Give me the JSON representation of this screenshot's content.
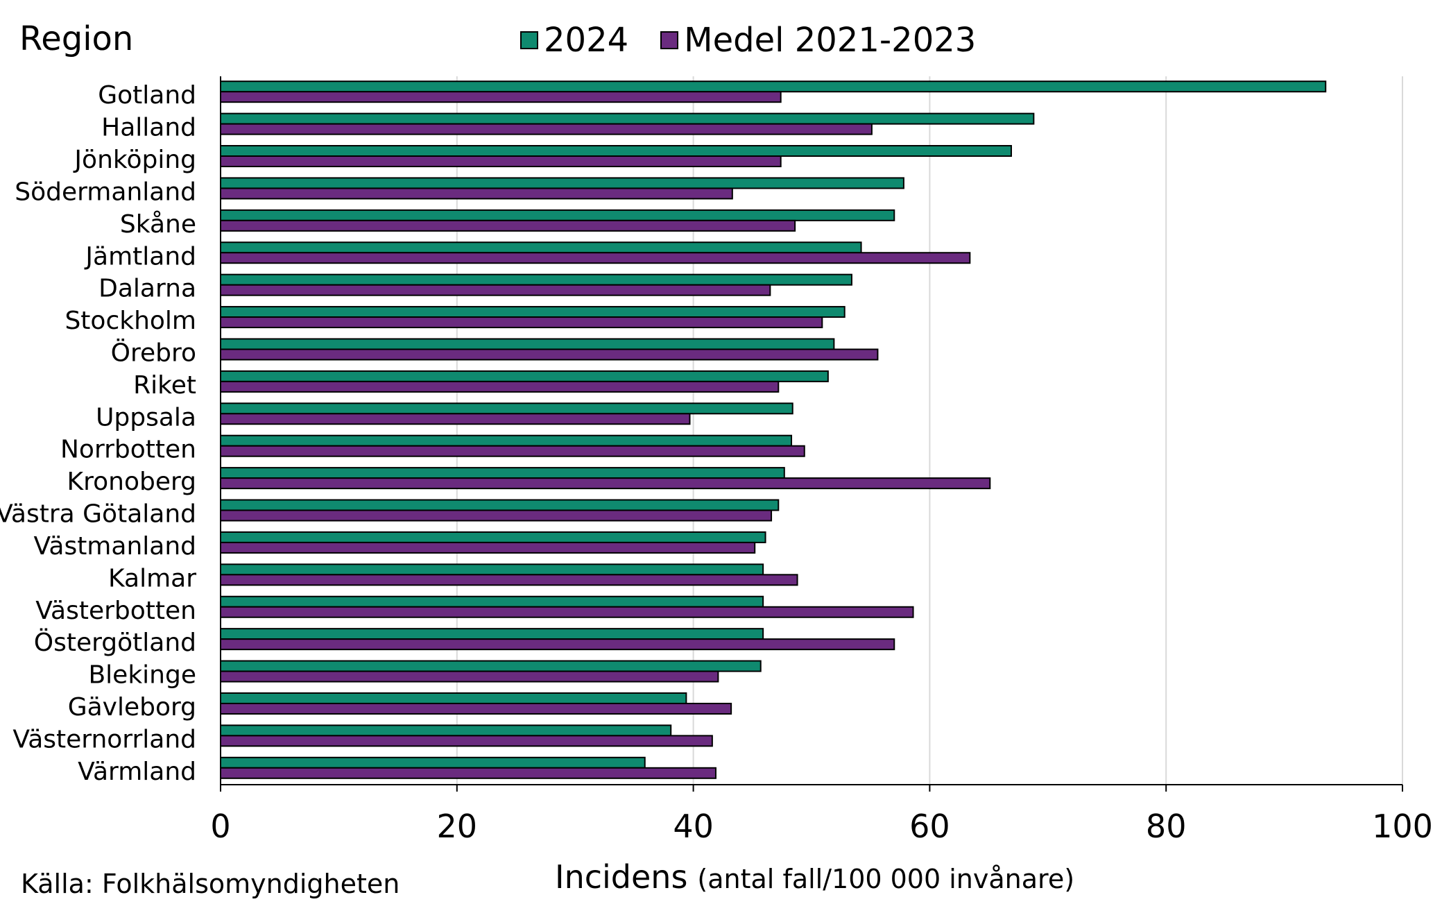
{
  "chart_data": {
    "type": "bar",
    "orientation": "horizontal",
    "y_title": "Region",
    "xlabel_main": "Incidens",
    "xlabel_sub": "(antal fall/100 000 invånare)",
    "source": "Källa: Folkhälsomyndigheten",
    "xlim": [
      0,
      100
    ],
    "xticks": [
      0,
      20,
      40,
      60,
      80,
      100
    ],
    "grid": true,
    "legend_position": "top-center",
    "categories": [
      "Gotland",
      "Halland",
      "Jönköping",
      "Södermanland",
      "Skåne",
      "Jämtland",
      "Dalarna",
      "Stockholm",
      "Örebro",
      "Riket",
      "Uppsala",
      "Norrbotten",
      "Kronoberg",
      "Västra Götaland",
      "Västmanland",
      "Kalmar",
      "Västerbotten",
      "Östergötland",
      "Blekinge",
      "Gävleborg",
      "Västernorrland",
      "Värmland"
    ],
    "series": [
      {
        "name": "2024",
        "color": "#0f8a6f",
        "values": [
          93.5,
          68.8,
          66.9,
          57.8,
          57.0,
          54.2,
          53.4,
          52.8,
          51.9,
          51.4,
          48.4,
          48.3,
          47.7,
          47.2,
          46.1,
          45.9,
          45.9,
          45.9,
          45.7,
          39.4,
          38.1,
          35.9
        ]
      },
      {
        "name": "Medel 2021-2023",
        "color": "#6a2b7f",
        "values": [
          47.4,
          55.1,
          47.4,
          43.3,
          48.6,
          63.4,
          46.5,
          50.9,
          55.6,
          47.2,
          39.7,
          49.4,
          65.1,
          46.6,
          45.2,
          48.8,
          58.6,
          57.0,
          42.1,
          43.2,
          41.6,
          41.9
        ]
      }
    ]
  }
}
